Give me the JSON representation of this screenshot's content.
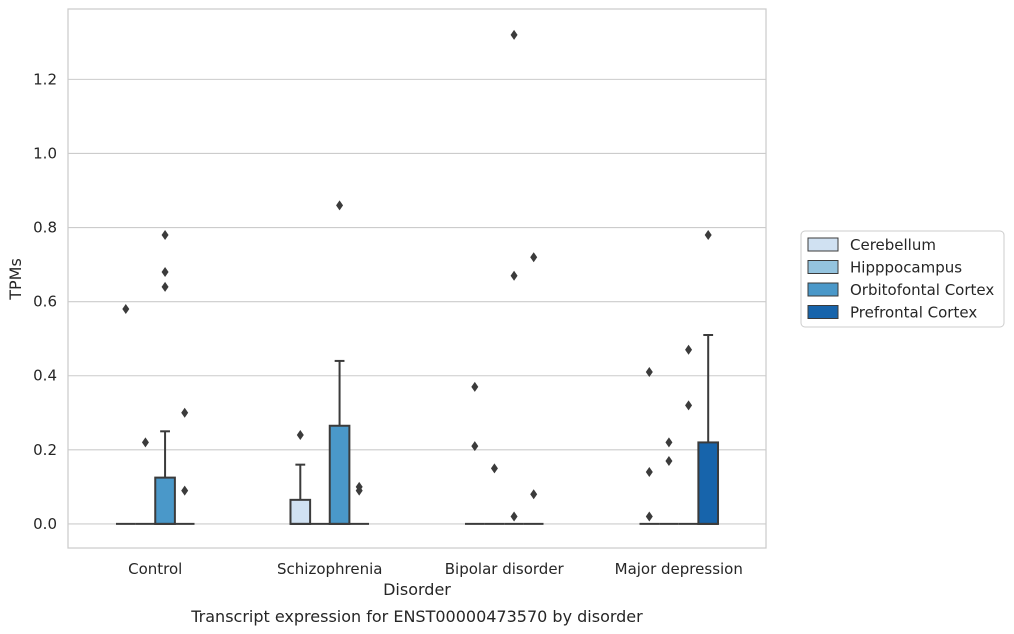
{
  "chart_data": {
    "type": "box",
    "title": "Transcript expression for ENST00000473570 by disorder",
    "xlabel": "Disorder",
    "ylabel": "TPMs",
    "categories": [
      "Control",
      "Schizophrenia",
      "Bipolar disorder",
      "Major depression"
    ],
    "yticks": [
      "0.0",
      "0.2",
      "0.4",
      "0.6",
      "0.8",
      "1.0",
      "1.2"
    ],
    "ylim": [
      -0.065,
      1.39
    ],
    "grid": true,
    "legend_position": "right",
    "series": [
      {
        "name": "Cerebellum",
        "color": "#d0e1f2",
        "boxes": [
          {
            "q1": 0,
            "median": 0,
            "q3": 0,
            "whislo": 0,
            "whishi": 0,
            "fliers": [
              0.58
            ]
          },
          {
            "q1": 0,
            "median": 0,
            "q3": 0.065,
            "whislo": 0,
            "whishi": 0.16,
            "fliers": [
              0.24
            ]
          },
          {
            "q1": 0,
            "median": 0,
            "q3": 0,
            "whislo": 0,
            "whishi": 0,
            "fliers": [
              0.37,
              0.21
            ]
          },
          {
            "q1": 0,
            "median": 0,
            "q3": 0,
            "whislo": 0,
            "whishi": 0,
            "fliers": [
              0.41,
              0.14,
              0.02
            ]
          }
        ]
      },
      {
        "name": "Hipppocampus",
        "color": "#94c4df",
        "boxes": [
          {
            "q1": 0,
            "median": 0,
            "q3": 0,
            "whislo": 0,
            "whishi": 0,
            "fliers": [
              0.22
            ]
          },
          {
            "q1": 0,
            "median": 0,
            "q3": 0,
            "whislo": 0,
            "whishi": 0,
            "fliers": []
          },
          {
            "q1": 0,
            "median": 0,
            "q3": 0,
            "whislo": 0,
            "whishi": 0,
            "fliers": [
              0.15
            ]
          },
          {
            "q1": 0,
            "median": 0,
            "q3": 0,
            "whislo": 0,
            "whishi": 0,
            "fliers": [
              0.22,
              0.17
            ]
          }
        ]
      },
      {
        "name": "Orbitofontal Cortex",
        "color": "#4a98c9",
        "boxes": [
          {
            "q1": 0,
            "median": 0,
            "q3": 0.125,
            "whislo": 0,
            "whishi": 0.25,
            "fliers": [
              0.78,
              0.68,
              0.64
            ]
          },
          {
            "q1": 0,
            "median": 0,
            "q3": 0.265,
            "whislo": 0,
            "whishi": 0.44,
            "fliers": [
              0.86
            ]
          },
          {
            "q1": 0,
            "median": 0,
            "q3": 0,
            "whislo": 0,
            "whishi": 0,
            "fliers": [
              1.32,
              0.67,
              0.02
            ]
          },
          {
            "q1": 0,
            "median": 0,
            "q3": 0,
            "whislo": 0,
            "whishi": 0,
            "fliers": [
              0.47,
              0.32
            ]
          }
        ]
      },
      {
        "name": "Prefrontal Cortex",
        "color": "#1764ab",
        "boxes": [
          {
            "q1": 0,
            "median": 0,
            "q3": 0,
            "whislo": 0,
            "whishi": 0,
            "fliers": [
              0.3,
              0.09
            ]
          },
          {
            "q1": 0,
            "median": 0,
            "q3": 0,
            "whislo": 0,
            "whishi": 0,
            "fliers": [
              0.1,
              0.09
            ]
          },
          {
            "q1": 0,
            "median": 0,
            "q3": 0,
            "whislo": 0,
            "whishi": 0,
            "fliers": [
              0.72,
              0.08
            ]
          },
          {
            "q1": 0,
            "median": 0,
            "q3": 0.22,
            "whislo": 0,
            "whishi": 0.51,
            "fliers": [
              0.78
            ]
          }
        ]
      }
    ]
  }
}
